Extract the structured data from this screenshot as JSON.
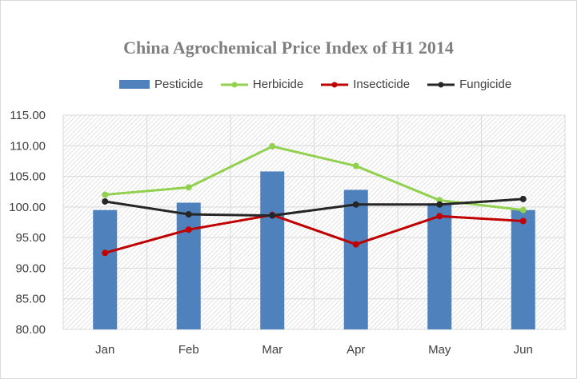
{
  "chart_data": {
    "type": "bar+line",
    "title": "China Agrochemical Price Index of H1 2014",
    "categories": [
      "Jan",
      "Feb",
      "Mar",
      "Apr",
      "May",
      "Jun"
    ],
    "ylim": [
      80,
      115
    ],
    "yticks": [
      "80.00",
      "85.00",
      "90.00",
      "95.00",
      "100.00",
      "105.00",
      "110.00",
      "115.00"
    ],
    "legend_position": "top",
    "series": [
      {
        "name": "Pesticide",
        "type": "bar",
        "color": "#4f81bd",
        "values": [
          99.5,
          100.7,
          105.8,
          102.8,
          100.6,
          99.5
        ]
      },
      {
        "name": "Herbicide",
        "type": "line",
        "color": "#92d050",
        "values": [
          102.0,
          103.2,
          109.9,
          106.7,
          101.1,
          99.5
        ]
      },
      {
        "name": "Insecticide",
        "type": "line",
        "color": "#c00000",
        "values": [
          92.5,
          96.3,
          98.7,
          93.9,
          98.5,
          97.7
        ]
      },
      {
        "name": "Fungicide",
        "type": "line",
        "color": "#262626",
        "values": [
          100.9,
          98.8,
          98.6,
          100.4,
          100.4,
          101.3
        ]
      }
    ]
  }
}
